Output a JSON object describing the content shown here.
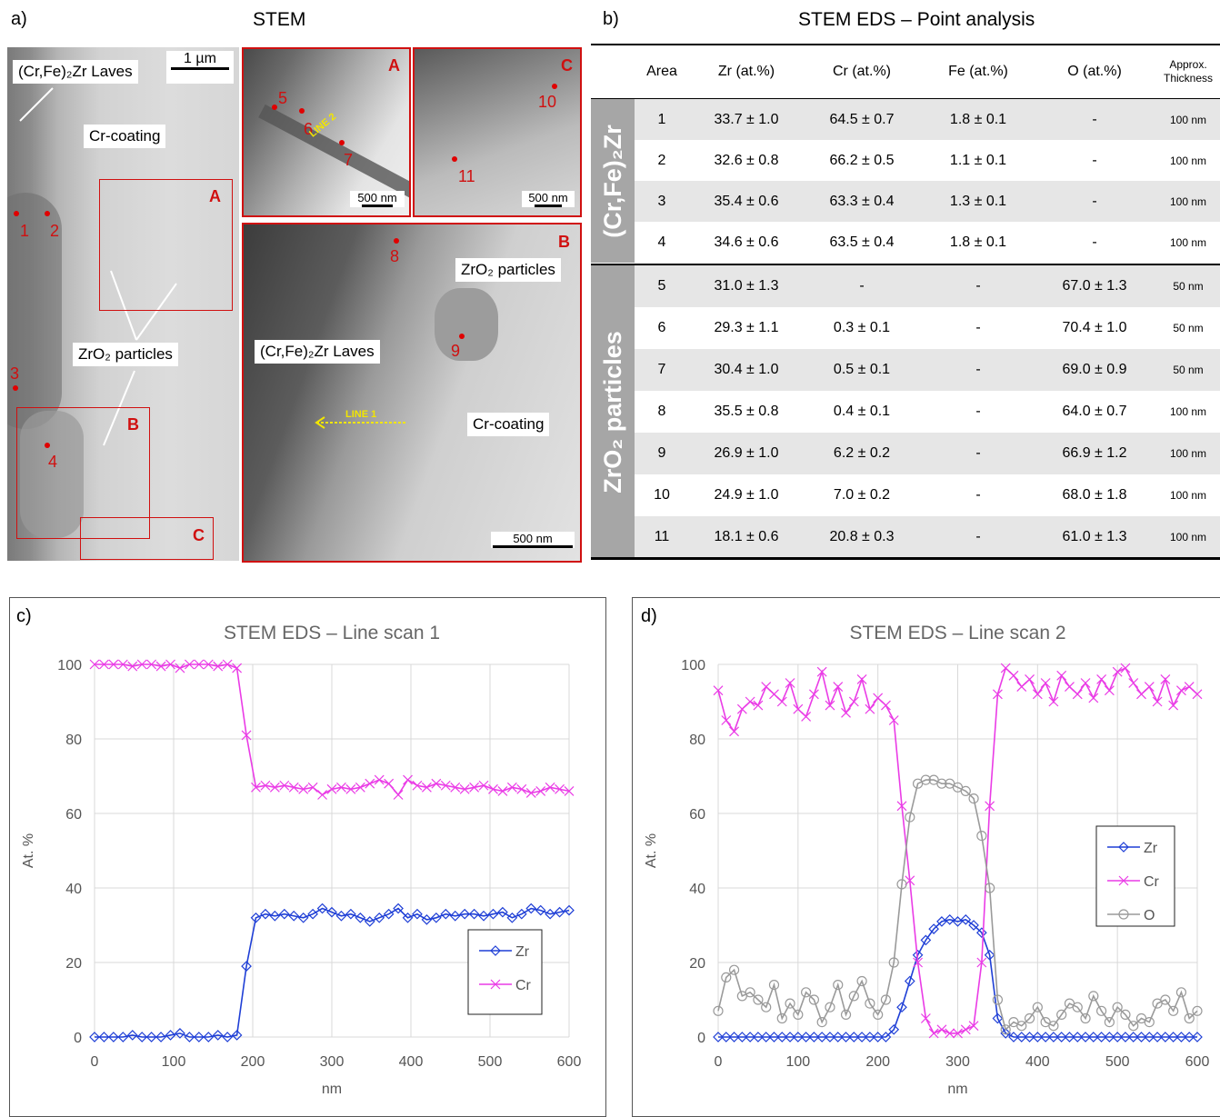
{
  "panels": {
    "a": "a)",
    "b": "b)",
    "c": "c)",
    "d": "d)"
  },
  "stem": {
    "title": "STEM",
    "main": {
      "callout_laves": "(Cr,Fe)₂Zr Laves",
      "callout_coating": "Cr-coating",
      "callout_particles": "ZrO₂ particles",
      "scale": "1 µm",
      "box_a": "A",
      "box_b": "B",
      "box_c": "C",
      "points": [
        "1",
        "2",
        "3",
        "4"
      ]
    },
    "inset_a": {
      "label": "A",
      "scale": "500 nm",
      "line": "LINE 2",
      "points": [
        "5",
        "6",
        "7"
      ]
    },
    "inset_c": {
      "label": "C",
      "scale": "500 nm",
      "points": [
        "10",
        "11"
      ]
    },
    "inset_b": {
      "label": "B",
      "scale": "500 nm",
      "line": "LINE 1",
      "callout_particles": "ZrO₂ particles",
      "callout_laves": "(Cr,Fe)₂Zr Laves",
      "callout_coating": "Cr-coating",
      "points": [
        "8",
        "9"
      ]
    }
  },
  "table": {
    "title": "STEM EDS – Point analysis",
    "headers": [
      "Area",
      "Zr (at.%)",
      "Cr (at.%)",
      "Fe (at.%)",
      "O (at.%)",
      "Approx. Thickness"
    ],
    "group1": "(Cr,Fe)₂Zr",
    "group2": "ZrO₂ particles",
    "rows": [
      [
        "1",
        "33.7 ± 1.0",
        "64.5 ± 0.7",
        "1.8 ± 0.1",
        "-",
        "100 nm"
      ],
      [
        "2",
        "32.6 ± 0.8",
        "66.2 ± 0.5",
        "1.1 ± 0.1",
        "-",
        "100 nm"
      ],
      [
        "3",
        "35.4 ± 0.6",
        "63.3 ± 0.4",
        "1.3 ± 0.1",
        "-",
        "100 nm"
      ],
      [
        "4",
        "34.6 ± 0.6",
        "63.5 ± 0.4",
        "1.8 ± 0.1",
        "-",
        "100 nm"
      ],
      [
        "5",
        "31.0 ± 1.3",
        "-",
        "-",
        "67.0 ± 1.3",
        "50 nm"
      ],
      [
        "6",
        "29.3 ± 1.1",
        "0.3 ± 0.1",
        "-",
        "70.4 ± 1.0",
        "50 nm"
      ],
      [
        "7",
        "30.4 ± 1.0",
        "0.5 ± 0.1",
        "-",
        "69.0 ± 0.9",
        "50 nm"
      ],
      [
        "8",
        "35.5 ± 0.8",
        "0.4 ± 0.1",
        "-",
        "64.0 ± 0.7",
        "100 nm"
      ],
      [
        "9",
        "26.9 ± 1.0",
        "6.2 ± 0.2",
        "-",
        "66.9 ± 1.2",
        "100 nm"
      ],
      [
        "10",
        "24.9 ± 1.0",
        "7.0 ± 0.2",
        "-",
        "68.0 ± 1.8",
        "100 nm"
      ],
      [
        "11",
        "18.1 ± 0.6",
        "20.8 ± 0.3",
        "-",
        "61.0 ± 1.3",
        "100 nm"
      ]
    ]
  },
  "colors": {
    "zr": "#1f3fd6",
    "cr": "#ea3ce6",
    "o": "#9a9a9a",
    "mark": "#d01010"
  },
  "chart_data": [
    {
      "type": "line",
      "title": "STEM EDS – Line scan 1",
      "xlabel": "nm",
      "ylabel": "At. %",
      "xlim": [
        0,
        600
      ],
      "ylim": [
        0,
        100
      ],
      "xticks": [
        "0",
        "100",
        "200",
        "300",
        "400",
        "500",
        "600"
      ],
      "yticks": [
        "0",
        "20",
        "40",
        "60",
        "80",
        "100"
      ],
      "grid": true,
      "legend": "bottom-right",
      "x": [
        0,
        12,
        24,
        36,
        48,
        60,
        72,
        84,
        96,
        108,
        120,
        132,
        144,
        156,
        168,
        180,
        192,
        204,
        216,
        228,
        240,
        252,
        264,
        276,
        288,
        300,
        312,
        324,
        336,
        348,
        360,
        372,
        384,
        396,
        408,
        420,
        432,
        444,
        456,
        468,
        480,
        492,
        504,
        516,
        528,
        540,
        552,
        564,
        576,
        588,
        600
      ],
      "series": [
        {
          "name": "Zr",
          "marker": "diamond",
          "values": [
            0,
            0,
            0,
            0,
            0.5,
            0,
            0,
            0,
            0.5,
            1,
            0,
            0,
            0,
            0.5,
            0,
            0.5,
            19,
            32,
            33,
            32.5,
            33,
            32.5,
            32,
            33,
            34.5,
            33.5,
            32.5,
            33,
            32,
            31,
            32,
            33,
            34.5,
            32,
            33,
            31.5,
            32,
            33,
            32.5,
            33,
            33,
            32.5,
            33,
            33.5,
            32,
            33,
            34.5,
            34,
            33,
            33.5,
            34
          ]
        },
        {
          "name": "Cr",
          "marker": "x",
          "values": [
            100,
            100,
            100,
            100,
            99.5,
            100,
            100,
            99.5,
            100,
            99,
            100,
            100,
            100,
            99.5,
            100,
            99,
            81,
            67,
            67.5,
            67,
            67.5,
            67,
            66.5,
            67,
            65,
            66.5,
            67,
            66.5,
            67,
            68,
            69,
            68,
            65,
            69,
            67.5,
            67,
            68,
            67.5,
            67,
            66.5,
            67,
            67.5,
            66.5,
            66,
            67,
            66.5,
            65.5,
            66,
            67,
            66.5,
            66
          ]
        }
      ]
    },
    {
      "type": "line",
      "title": "STEM EDS – Line scan 2",
      "xlabel": "nm",
      "ylabel": "At. %",
      "xlim": [
        0,
        600
      ],
      "ylim": [
        0,
        100
      ],
      "xticks": [
        "0",
        "100",
        "200",
        "300",
        "400",
        "500",
        "600"
      ],
      "yticks": [
        "0",
        "20",
        "40",
        "60",
        "80",
        "100"
      ],
      "grid": true,
      "legend": "center-right",
      "x": [
        0,
        10,
        20,
        30,
        40,
        50,
        60,
        70,
        80,
        90,
        100,
        110,
        120,
        130,
        140,
        150,
        160,
        170,
        180,
        190,
        200,
        210,
        220,
        230,
        240,
        250,
        260,
        270,
        280,
        290,
        300,
        310,
        320,
        330,
        340,
        350,
        360,
        370,
        380,
        390,
        400,
        410,
        420,
        430,
        440,
        450,
        460,
        470,
        480,
        490,
        500,
        510,
        520,
        530,
        540,
        550,
        560,
        570,
        580,
        590,
        600
      ],
      "series": [
        {
          "name": "Zr",
          "marker": "diamond",
          "values": [
            0,
            0,
            0,
            0,
            0,
            0,
            0,
            0,
            0,
            0,
            0,
            0,
            0,
            0,
            0,
            0,
            0,
            0,
            0,
            0,
            0,
            0,
            2,
            8,
            15,
            22,
            26,
            29,
            31,
            31.5,
            31,
            31.5,
            30,
            28,
            22,
            5,
            1,
            0,
            0,
            0,
            0,
            0,
            0,
            0,
            0,
            0,
            0,
            0,
            0,
            0,
            0,
            0,
            0,
            0,
            0,
            0,
            0,
            0,
            0,
            0,
            0
          ]
        },
        {
          "name": "Cr",
          "marker": "x",
          "values": [
            93,
            85,
            82,
            88,
            90,
            89,
            94,
            92,
            90,
            95,
            88,
            86,
            92,
            98,
            89,
            94,
            87,
            90,
            96,
            88,
            91,
            89,
            85,
            62,
            42,
            20,
            5,
            1,
            2,
            1,
            1,
            2,
            3,
            20,
            62,
            92,
            99,
            97,
            94,
            96,
            92,
            95,
            90,
            97,
            94,
            92,
            95,
            91,
            96,
            93,
            98,
            99,
            95,
            92,
            94,
            90,
            96,
            89,
            93,
            94,
            92
          ]
        },
        {
          "name": "O",
          "marker": "circle",
          "values": [
            7,
            16,
            18,
            11,
            12,
            10,
            8,
            14,
            5,
            9,
            6,
            12,
            10,
            4,
            8,
            14,
            6,
            11,
            15,
            9,
            6,
            10,
            20,
            41,
            59,
            68,
            69,
            69,
            68,
            68,
            67,
            66,
            64,
            54,
            40,
            10,
            2,
            4,
            3,
            5,
            8,
            4,
            3,
            6,
            9,
            8,
            5,
            11,
            7,
            4,
            8,
            6,
            3,
            5,
            4,
            9,
            10,
            7,
            12,
            5,
            7
          ]
        }
      ]
    }
  ]
}
